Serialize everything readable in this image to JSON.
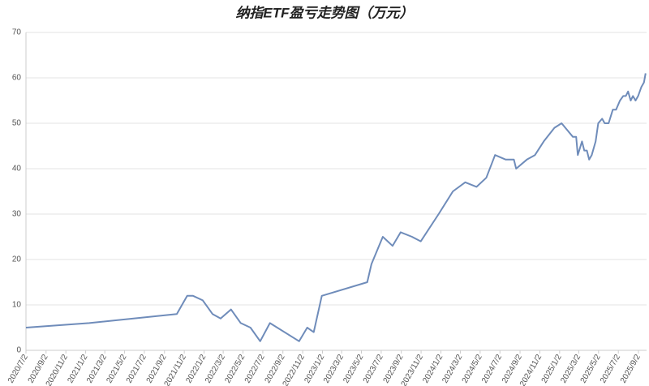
{
  "chart_data": {
    "type": "line",
    "title": "纳指ETF盈亏走势图（万元）",
    "x": [
      "2020/7/2",
      "2021/1/13",
      "2021/10/10",
      "2021/11/11",
      "2021/11/29",
      "2021/12/29",
      "2022/1/28",
      "2022/2/22",
      "2022/3/26",
      "2022/4/25",
      "2022/5/25",
      "2022/6/24",
      "2022/7/24",
      "2022/10/22",
      "2022/11/16",
      "2022/12/6",
      "2022/12/31",
      "2023/5/20",
      "2023/6/2",
      "2023/7/7",
      "2023/8/6",
      "2023/8/31",
      "2023/10/5",
      "2023/11/1",
      "2023/12/26",
      "2024/2/8",
      "2024/3/17",
      "2024/4/21",
      "2024/5/21",
      "2024/6/17",
      "2024/7/20",
      "2024/8/14",
      "2024/8/21",
      "2024/9/23",
      "2024/10/18",
      "2024/11/14",
      "2024/12/17",
      "2025/1/8",
      "2025/2/12",
      "2025/2/22",
      "2025/2/27",
      "2025/3/12",
      "2025/3/19",
      "2025/3/27",
      "2025/4/3",
      "2025/4/11",
      "2025/4/23",
      "2025/5/1",
      "2025/5/13",
      "2025/5/21",
      "2025/6/2",
      "2025/6/15",
      "2025/6/25",
      "2025/7/7",
      "2025/7/17",
      "2025/7/25",
      "2025/8/1",
      "2025/8/9",
      "2025/8/16",
      "2025/8/24",
      "2025/9/1",
      "2025/9/11",
      "2025/9/19",
      "2025/9/24"
    ],
    "series": [
      {
        "color": "#6f8cba",
        "values": [
          5,
          6,
          8,
          12,
          12,
          11,
          8,
          7,
          9,
          6,
          5,
          2,
          6,
          2,
          5,
          4,
          12,
          15,
          19,
          25,
          23,
          26,
          25,
          24,
          30,
          35,
          37,
          36,
          38,
          43,
          42,
          42,
          40,
          42,
          43,
          46,
          49,
          50,
          47,
          47,
          43,
          46,
          44,
          44,
          42,
          43,
          46,
          50,
          51,
          50,
          50,
          53,
          53,
          55,
          56,
          56,
          57,
          55,
          56,
          55,
          56,
          58,
          59,
          61
        ]
      }
    ],
    "xlim": [
      "2020/7/2",
      "2025/9/27"
    ],
    "xticks": [
      "2020/7/2",
      "2020/9/2",
      "2020/11/2",
      "2021/1/2",
      "2021/3/2",
      "2021/5/2",
      "2021/7/2",
      "2021/9/2",
      "2021/11/2",
      "2022/1/2",
      "2022/3/2",
      "2022/5/2",
      "2022/7/2",
      "2022/9/2",
      "2022/11/2",
      "2023/1/2",
      "2023/3/2",
      "2023/5/2",
      "2023/7/2",
      "2023/9/2",
      "2023/11/2",
      "2024/1/2",
      "2024/3/2",
      "2024/5/2",
      "2024/7/2",
      "2024/9/2",
      "2024/11/2",
      "2025/1/2",
      "2025/3/2",
      "2025/5/2",
      "2025/7/2",
      "2025/9/2"
    ],
    "ylim": [
      0,
      70
    ],
    "yticks": [
      0,
      10,
      20,
      30,
      40,
      50,
      60,
      70
    ],
    "grid": true
  }
}
